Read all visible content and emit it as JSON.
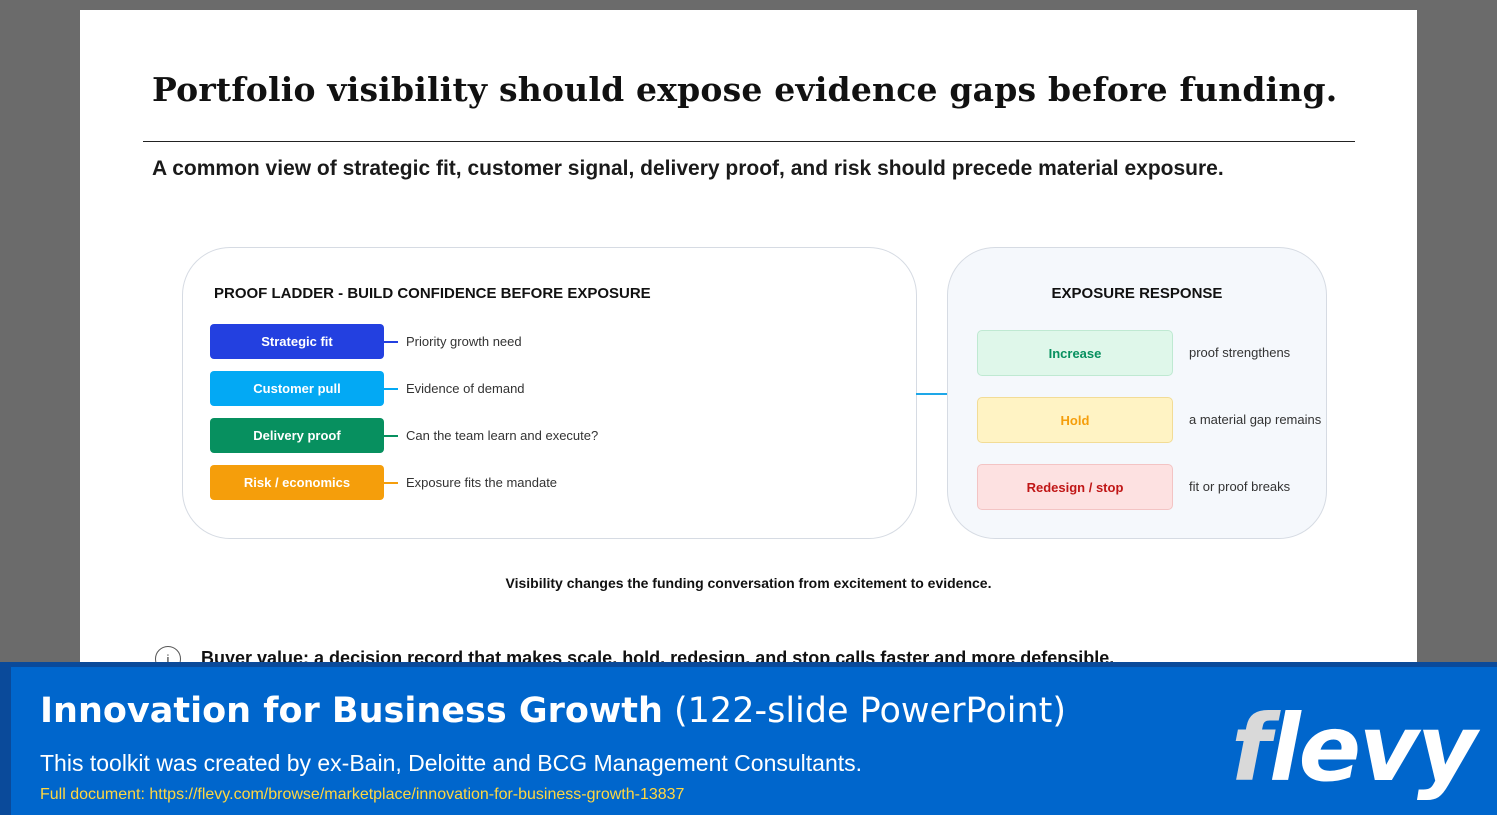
{
  "slide": {
    "title": "Portfolio visibility should expose evidence gaps before funding.",
    "subtitle": "A common view of strategic fit, customer signal, delivery proof, and risk should precede material exposure.",
    "proof_ladder": {
      "heading": "PROOF LADDER - BUILD CONFIDENCE BEFORE EXPOSURE",
      "rungs": [
        {
          "label": "Strategic fit",
          "description": "Priority growth need",
          "color": "#2340e0"
        },
        {
          "label": "Customer pull",
          "description": "Evidence of demand",
          "color": "#03a9f4"
        },
        {
          "label": "Delivery proof",
          "description": "Can the team learn and execute?",
          "color": "#07905f"
        },
        {
          "label": "Risk / economics",
          "description": "Exposure fits the mandate",
          "color": "#f59e0b"
        }
      ]
    },
    "exposure_response": {
      "heading": "EXPOSURE RESPONSE",
      "responses": [
        {
          "label": "Increase",
          "description": "proof strengthens",
          "text_color": "#07905f",
          "fill": "#dff7ea",
          "border": "#bfe9d2"
        },
        {
          "label": "Hold",
          "description": "a material gap remains",
          "text_color": "#f59e0b",
          "fill": "#fff3c4",
          "border": "#f2dc96"
        },
        {
          "label": "Redesign / stop",
          "description": "fit or proof breaks",
          "text_color": "#c01616",
          "fill": "#fde1e1",
          "border": "#f3c4c4"
        }
      ]
    },
    "note": "Visibility changes the funding conversation from excitement to evidence.",
    "bullet": {
      "icon": "info-circle-icon",
      "glyph": "i",
      "text": "Buyer value: a decision record that makes scale, hold, redesign, and stop calls faster and more defensible."
    }
  },
  "banner": {
    "title_bold": "Innovation for Business Growth",
    "title_rest": " (122-slide PowerPoint)",
    "tagline": "This toolkit was created by ex-Bain, Deloitte and BCG Management Consultants.",
    "link": "Full document: https://flevy.com/browse/marketplace/innovation-for-business-growth-13837",
    "logo_first": "f",
    "logo_rest": "levy"
  }
}
